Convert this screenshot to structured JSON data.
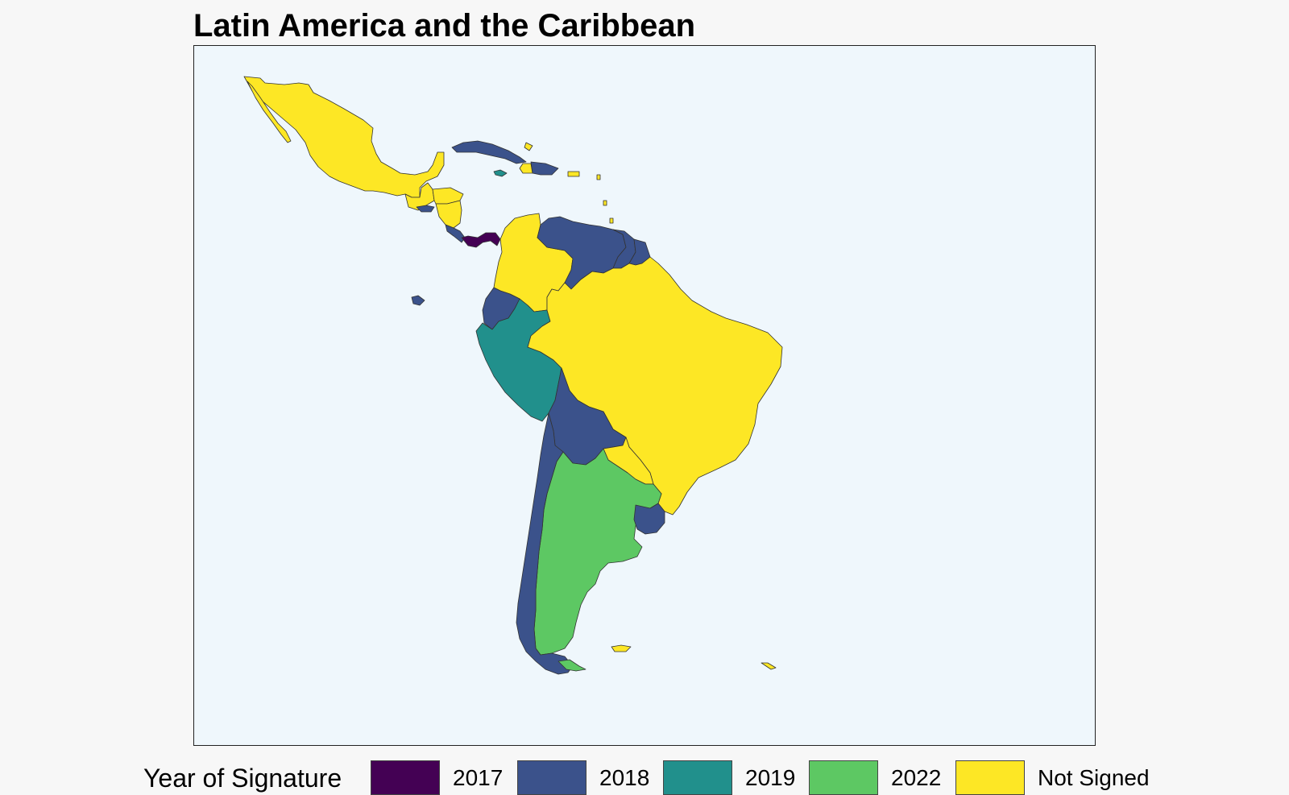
{
  "title": "Latin America and the Caribbean",
  "legend": {
    "title": "Year of Signature",
    "items": [
      {
        "label": "2017",
        "color": "#440154"
      },
      {
        "label": "2018",
        "color": "#3b528b"
      },
      {
        "label": "2019",
        "color": "#21908c"
      },
      {
        "label": "2022",
        "color": "#5dc863"
      },
      {
        "label": "Not Signed",
        "color": "#fde725"
      }
    ]
  },
  "colors": {
    "ocean": "#eff7fc",
    "background": "#f7f7f7",
    "border": "#333333"
  }
}
